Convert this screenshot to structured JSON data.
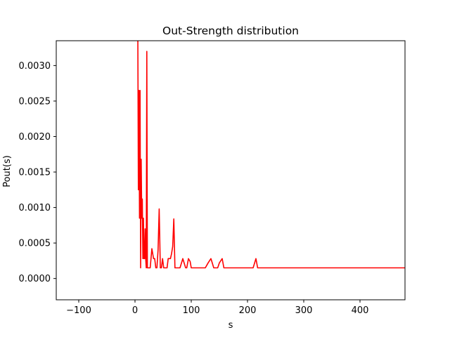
{
  "chart_data": {
    "type": "line",
    "title": "Out-Strength distribution",
    "xlabel": "s",
    "ylabel": "Pout(s)",
    "xlim": [
      -140,
      480
    ],
    "ylim": [
      -0.0003,
      0.00335
    ],
    "xticks": [
      -100,
      0,
      100,
      200,
      300,
      400
    ],
    "xtick_labels": [
      "−100",
      "0",
      "100",
      "200",
      "300",
      "400"
    ],
    "yticks": [
      0.0,
      0.0005,
      0.001,
      0.0015,
      0.002,
      0.0025,
      0.003
    ],
    "ytick_labels": [
      "0.0000",
      "0.0005",
      "0.0010",
      "0.0015",
      "0.0020",
      "0.0025",
      "0.0030"
    ],
    "grid": false,
    "series": [
      {
        "color": "#ff0000",
        "x": [
          5,
          6,
          7,
          8,
          9,
          10,
          11,
          12,
          13,
          14,
          15,
          16,
          17,
          18,
          19,
          20,
          21,
          22,
          23,
          24,
          25,
          27,
          30,
          33,
          35,
          37,
          39,
          41,
          43,
          45,
          47,
          49,
          51,
          53,
          55,
          57,
          59,
          61,
          63,
          65,
          67,
          69,
          71,
          73,
          75,
          77,
          80,
          85,
          90,
          92,
          95,
          98,
          100,
          105,
          110,
          115,
          120,
          125,
          130,
          135,
          140,
          143,
          147,
          150,
          155,
          158,
          160,
          170,
          180,
          190,
          200,
          210,
          215,
          218,
          222,
          230,
          250,
          300,
          350,
          400,
          450,
          480
        ],
        "y": [
          0.0035,
          0.00125,
          0.00265,
          0.00085,
          0.00265,
          0.00015,
          0.00168,
          0.00085,
          0.00112,
          0.00028,
          0.00085,
          0.00028,
          0.00028,
          0.0007,
          0.00028,
          0.00015,
          0.0032,
          0.00015,
          0.00015,
          0.00015,
          0.00015,
          0.00015,
          0.00042,
          0.00028,
          0.00028,
          0.00015,
          0.00015,
          0.0004,
          0.00098,
          0.00015,
          0.00015,
          0.00028,
          0.00015,
          0.00015,
          0.00015,
          0.00015,
          0.00028,
          0.00028,
          0.00028,
          0.00035,
          0.00045,
          0.00084,
          0.00015,
          0.00015,
          0.00015,
          0.00015,
          0.00015,
          0.00028,
          0.00015,
          0.00015,
          0.00028,
          0.00024,
          0.00015,
          0.00015,
          0.00015,
          0.00015,
          0.00015,
          0.00015,
          0.00022,
          0.00028,
          0.00015,
          0.00015,
          0.00015,
          0.00022,
          0.00028,
          0.00015,
          0.00015,
          0.00015,
          0.00015,
          0.00015,
          0.00015,
          0.00015,
          0.00028,
          0.00015,
          0.00015,
          0.00015,
          0.00015,
          0.00015,
          0.00015,
          0.00015,
          0.00015,
          0.00015
        ]
      }
    ]
  }
}
